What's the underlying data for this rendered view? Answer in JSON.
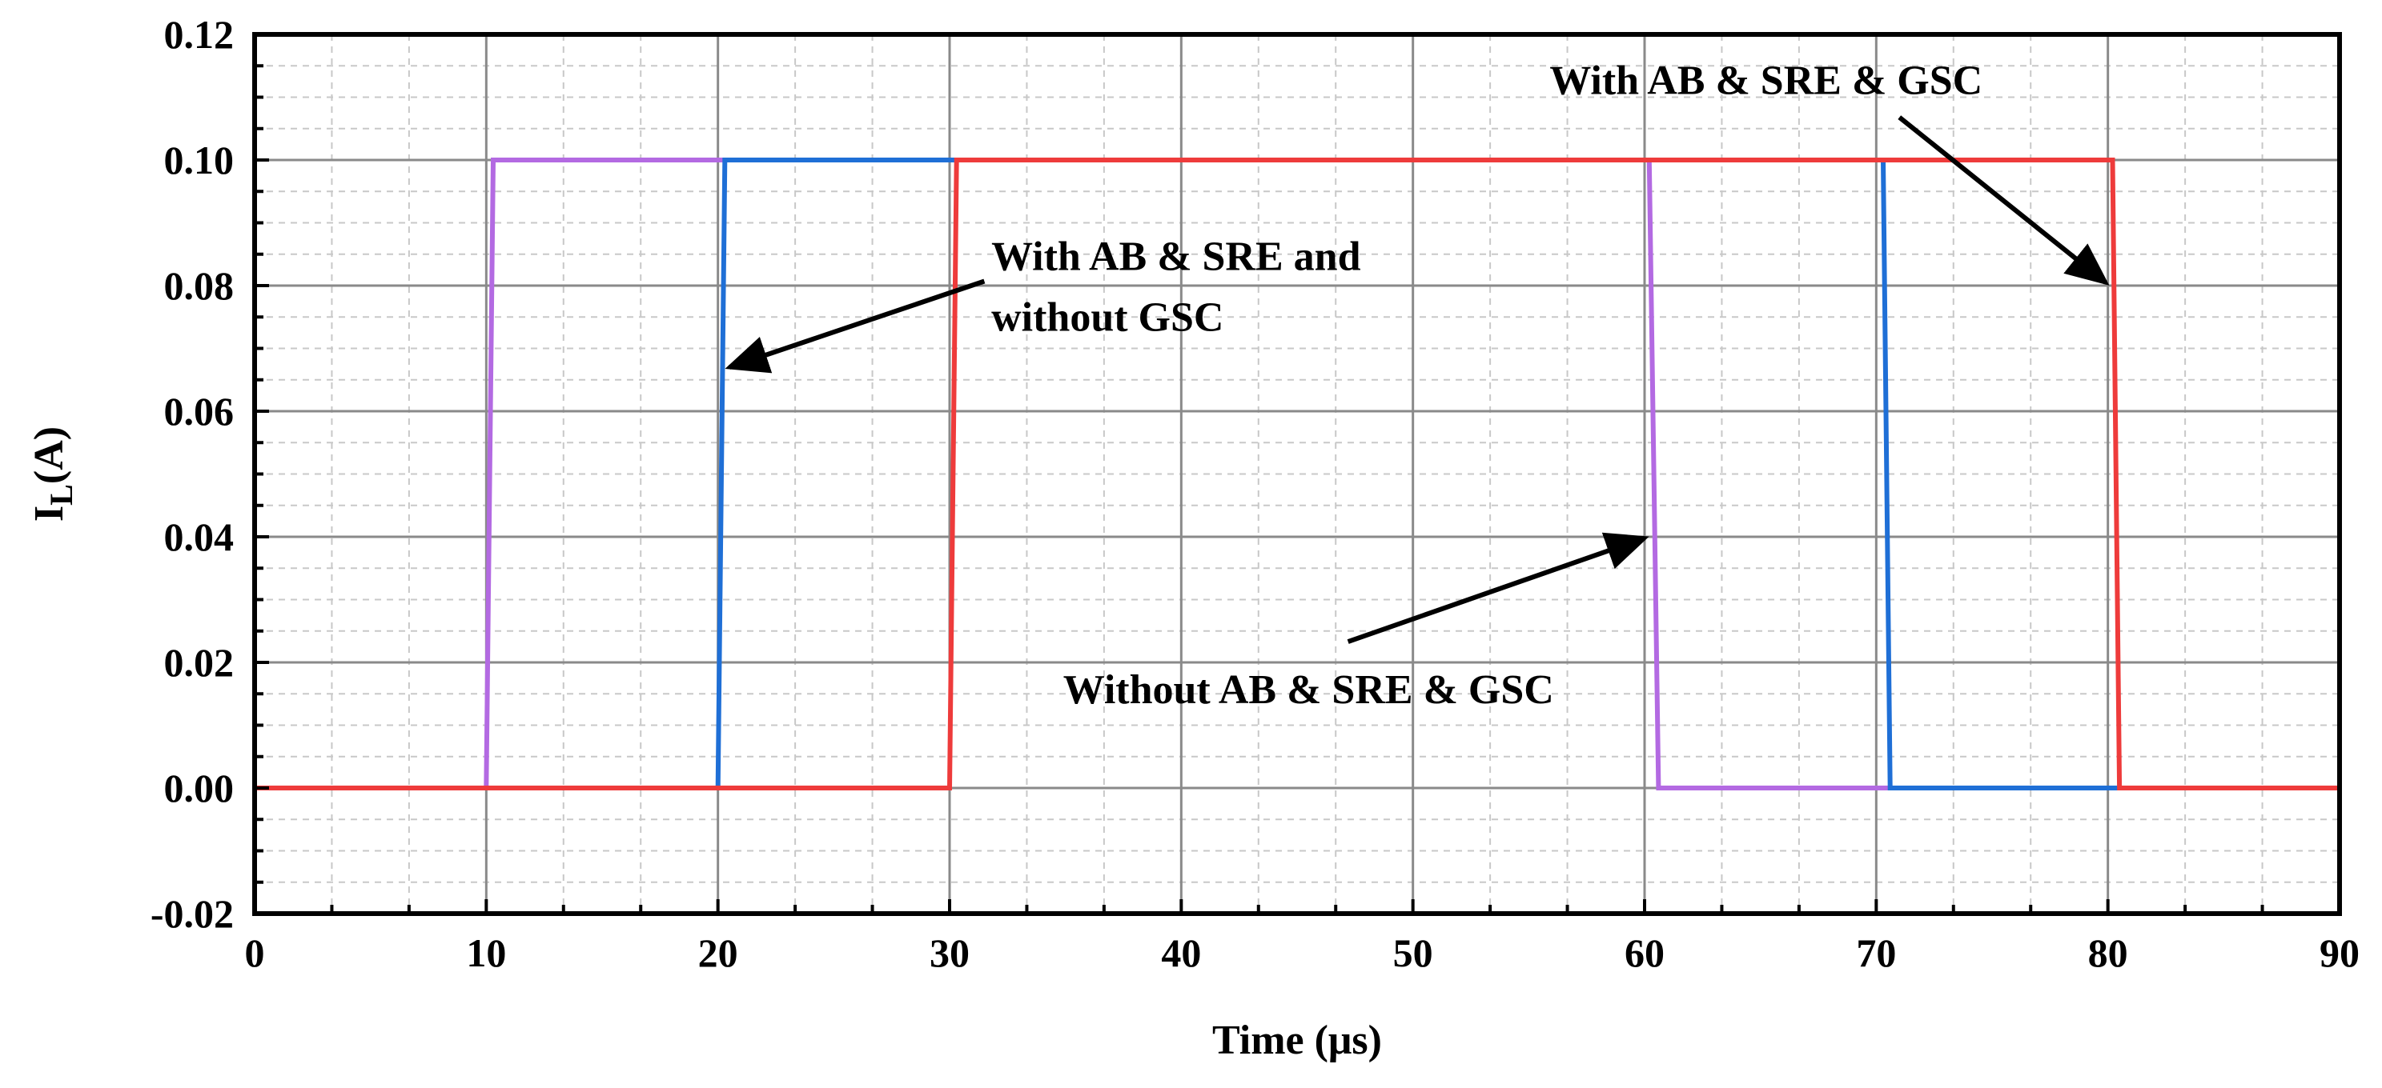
{
  "chart_data": {
    "type": "line",
    "xlabel": "Time (μs)",
    "ylabel_main": "I",
    "ylabel_sub": "L",
    "ylabel_suffix": "(A)",
    "xlim": [
      0,
      90
    ],
    "ylim": [
      -0.02,
      0.12
    ],
    "xticks": [
      "0",
      "10",
      "20",
      "30",
      "40",
      "50",
      "60",
      "70",
      "80",
      "90"
    ],
    "yticks": [
      "-0.02",
      "0.00",
      "0.02",
      "0.04",
      "0.06",
      "0.08",
      "0.10",
      "0.12"
    ],
    "grid": true,
    "series": [
      {
        "color": "#b36ae2",
        "points": [
          [
            0,
            0
          ],
          [
            10.0,
            0
          ],
          [
            10.3,
            0.1
          ],
          [
            60.2,
            0.1
          ],
          [
            60.6,
            0
          ],
          [
            90,
            0
          ]
        ]
      },
      {
        "color": "#1f6fd6",
        "points": [
          [
            0,
            0
          ],
          [
            20.0,
            0
          ],
          [
            20.3,
            0.1
          ],
          [
            70.3,
            0.1
          ],
          [
            70.6,
            0
          ],
          [
            90,
            0
          ]
        ]
      },
      {
        "color": "#ee3b3b",
        "points": [
          [
            0,
            0
          ],
          [
            30.0,
            0
          ],
          [
            30.3,
            0.1
          ],
          [
            80.2,
            0.1
          ],
          [
            80.5,
            0
          ],
          [
            90,
            0
          ]
        ]
      }
    ],
    "annotations": [
      {
        "lines": [
          "With AB & SRE and",
          "without  GSC"
        ],
        "text_at": [
          31.8,
          0.0825
        ],
        "arrow_from": [
          31.5,
          0.0807
        ],
        "arrow_to": [
          20.5,
          0.067
        ]
      },
      {
        "lines": [
          "With AB & SRE & GSC"
        ],
        "text_at": [
          55.9,
          0.1105
        ],
        "arrow_from": [
          71.0,
          0.1068
        ],
        "arrow_to": [
          79.9,
          0.0805
        ]
      },
      {
        "lines": [
          "Without AB & SRE & GSC"
        ],
        "text_at": [
          34.9,
          0.0135
        ],
        "arrow_from": [
          47.2,
          0.0233
        ],
        "arrow_to": [
          60.0,
          0.0398
        ]
      }
    ]
  }
}
